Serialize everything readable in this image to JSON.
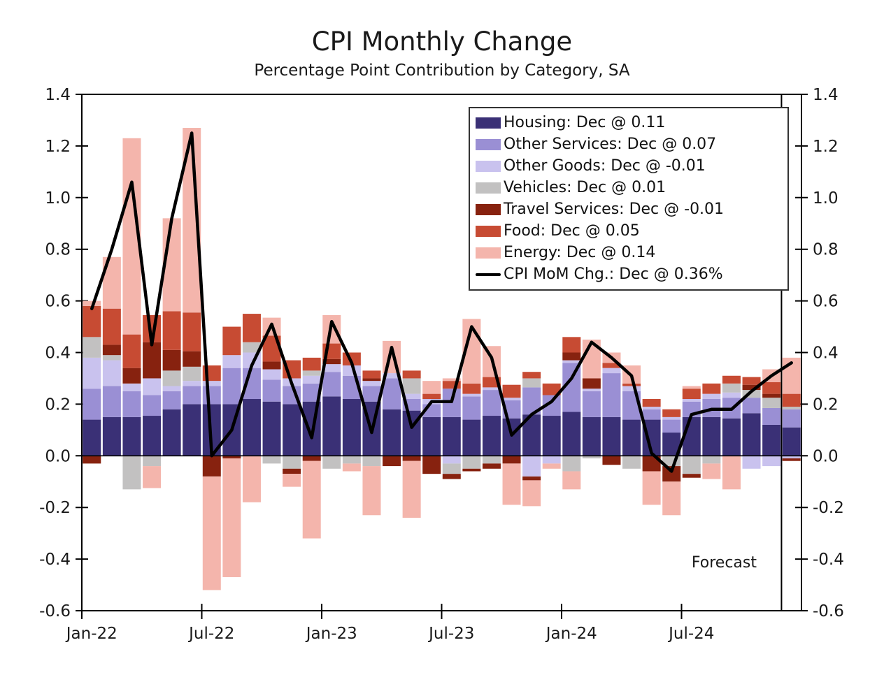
{
  "title": "CPI Monthly Change",
  "subtitle": "Percentage Point Contribution by Category, SA",
  "forecast": {
    "label": "Forecast",
    "boundary_after_month": "Nov-24"
  },
  "colors": {
    "housing": "#3A3076",
    "other_services": "#9A8FD4",
    "other_goods": "#C9C2EE",
    "vehicles": "#C2C1C1",
    "travel_services": "#87220F",
    "food": "#C74B33",
    "energy": "#F4B5AC",
    "cpi_line": "#000000",
    "axis": "#000000"
  },
  "chart_data": {
    "type": "bar",
    "subtype": "stacked-bar-with-line",
    "title": "CPI Monthly Change",
    "subtitle": "Percentage Point Contribution by Category, SA",
    "categories": [
      "Jan-22",
      "Feb-22",
      "Mar-22",
      "Apr-22",
      "May-22",
      "Jun-22",
      "Jul-22",
      "Aug-22",
      "Sep-22",
      "Oct-22",
      "Nov-22",
      "Dec-22",
      "Jan-23",
      "Feb-23",
      "Mar-23",
      "Apr-23",
      "May-23",
      "Jun-23",
      "Jul-23",
      "Aug-23",
      "Sep-23",
      "Oct-23",
      "Nov-23",
      "Dec-23",
      "Jan-24",
      "Feb-24",
      "Mar-24",
      "Apr-24",
      "May-24",
      "Jun-24",
      "Jul-24",
      "Aug-24",
      "Sep-24",
      "Oct-24",
      "Nov-24",
      "Dec-24"
    ],
    "x_tick_labels": [
      "Jan-22",
      "Jul-22",
      "Jan-23",
      "Jul-23",
      "Jan-24",
      "Jul-24"
    ],
    "ylim": [
      -0.6,
      1.4
    ],
    "y_tick_step": 0.2,
    "grid": false,
    "legend_position": "upper-right",
    "series": [
      {
        "name": "Housing",
        "color_key": "housing",
        "values": [
          0.14,
          0.15,
          0.15,
          0.155,
          0.18,
          0.2,
          0.2,
          0.2,
          0.22,
          0.21,
          0.2,
          0.21,
          0.23,
          0.22,
          0.21,
          0.18,
          0.175,
          0.15,
          0.15,
          0.14,
          0.155,
          0.145,
          0.16,
          0.155,
          0.17,
          0.15,
          0.15,
          0.14,
          0.14,
          0.09,
          0.15,
          0.15,
          0.145,
          0.165,
          0.12,
          0.11
        ]
      },
      {
        "name": "Other Services",
        "color_key": "other_services",
        "values": [
          0.12,
          0.12,
          0.1,
          0.08,
          0.07,
          0.07,
          0.07,
          0.14,
          0.12,
          0.085,
          0.07,
          0.07,
          0.095,
          0.09,
          0.06,
          0.12,
          0.045,
          0.05,
          0.11,
          0.09,
          0.1,
          0.07,
          0.105,
          0.08,
          0.19,
          0.1,
          0.17,
          0.11,
          0.04,
          0.05,
          0.06,
          0.07,
          0.08,
          0.06,
          0.065,
          0.07
        ]
      },
      {
        "name": "Other Goods",
        "color_key": "other_goods",
        "values": [
          0.12,
          0.1,
          0.03,
          0.065,
          0.02,
          0.02,
          0.02,
          0.05,
          0.06,
          0.04,
          0.03,
          0.03,
          0.03,
          0.04,
          0.02,
          0.02,
          0.02,
          0.02,
          -0.03,
          0.01,
          0.01,
          0.01,
          -0.08,
          -0.03,
          0.01,
          0.01,
          0.02,
          0.02,
          0.01,
          0.01,
          0.01,
          0.02,
          0.02,
          -0.05,
          -0.04,
          -0.01
        ]
      },
      {
        "name": "Vehicles",
        "color_key": "vehicles",
        "values": [
          0.08,
          0.02,
          -0.13,
          -0.04,
          0.06,
          0.055,
          0,
          0,
          0.04,
          -0.03,
          -0.05,
          0.02,
          -0.05,
          -0.03,
          -0.04,
          0,
          0.06,
          0,
          -0.04,
          -0.05,
          -0.03,
          0,
          0.035,
          0,
          -0.06,
          -0.01,
          0,
          -0.05,
          0,
          -0.04,
          -0.07,
          -0.03,
          0.035,
          0.03,
          0.04,
          0.01
        ]
      },
      {
        "name": "Travel Services",
        "color_key": "travel_services",
        "values": [
          -0.03,
          0.04,
          0.06,
          0.14,
          0.08,
          0.06,
          -0.08,
          -0.01,
          0,
          0.03,
          -0.02,
          -0.02,
          0.02,
          0,
          0.01,
          -0.04,
          -0.02,
          -0.07,
          -0.02,
          -0.01,
          -0.02,
          -0.03,
          -0.015,
          0,
          0.03,
          0.04,
          -0.035,
          0,
          -0.06,
          -0.06,
          -0.015,
          0,
          0,
          0.02,
          0.015,
          -0.01
        ]
      },
      {
        "name": "Food",
        "color_key": "food",
        "values": [
          0.12,
          0.14,
          0.13,
          0.105,
          0.15,
          0.15,
          0.06,
          0.11,
          0.11,
          0.1,
          0.07,
          0.05,
          0.06,
          0.05,
          0.03,
          0,
          0.03,
          0.02,
          0.03,
          0.04,
          0.04,
          0.05,
          0.025,
          0.045,
          0.06,
          0,
          0.02,
          0.01,
          0.03,
          0.03,
          0.04,
          0.04,
          0.03,
          0.03,
          0.045,
          0.05
        ]
      },
      {
        "name": "Energy",
        "color_key": "energy",
        "values": [
          0.02,
          0.2,
          0.76,
          -0.085,
          0.36,
          0.715,
          -0.44,
          -0.46,
          -0.18,
          0.07,
          -0.05,
          -0.3,
          0.11,
          -0.03,
          -0.19,
          0.125,
          -0.22,
          0.05,
          0.01,
          0.25,
          0.12,
          -0.16,
          -0.1,
          -0.02,
          -0.07,
          0.15,
          0.04,
          0.07,
          -0.13,
          -0.13,
          0.01,
          -0.06,
          -0.13,
          0,
          0.05,
          0.14
        ]
      }
    ],
    "line_series": {
      "name": "CPI MoM Chg.",
      "color_key": "cpi_line",
      "values": [
        0.57,
        0.8,
        1.06,
        0.43,
        0.92,
        1.25,
        0.0,
        0.1,
        0.35,
        0.51,
        0.28,
        0.07,
        0.52,
        0.36,
        0.09,
        0.42,
        0.11,
        0.21,
        0.21,
        0.5,
        0.38,
        0.08,
        0.16,
        0.21,
        0.3,
        0.44,
        0.38,
        0.31,
        0.01,
        -0.06,
        0.16,
        0.18,
        0.18,
        0.25,
        0.31,
        0.36
      ]
    },
    "legend": [
      {
        "label": "Housing: Dec @ 0.11",
        "color_key": "housing",
        "kind": "patch"
      },
      {
        "label": "Other Services: Dec @ 0.07",
        "color_key": "other_services",
        "kind": "patch"
      },
      {
        "label": "Other Goods: Dec @ -0.01",
        "color_key": "other_goods",
        "kind": "patch"
      },
      {
        "label": "Vehicles: Dec @ 0.01",
        "color_key": "vehicles",
        "kind": "patch"
      },
      {
        "label": "Travel Services: Dec @ -0.01",
        "color_key": "travel_services",
        "kind": "patch"
      },
      {
        "label": "Food: Dec @ 0.05",
        "color_key": "food",
        "kind": "patch"
      },
      {
        "label": "Energy: Dec @ 0.14",
        "color_key": "energy",
        "kind": "patch"
      },
      {
        "label": "CPI MoM Chg.: Dec @ 0.36%",
        "color_key": "cpi_line",
        "kind": "line"
      }
    ]
  }
}
